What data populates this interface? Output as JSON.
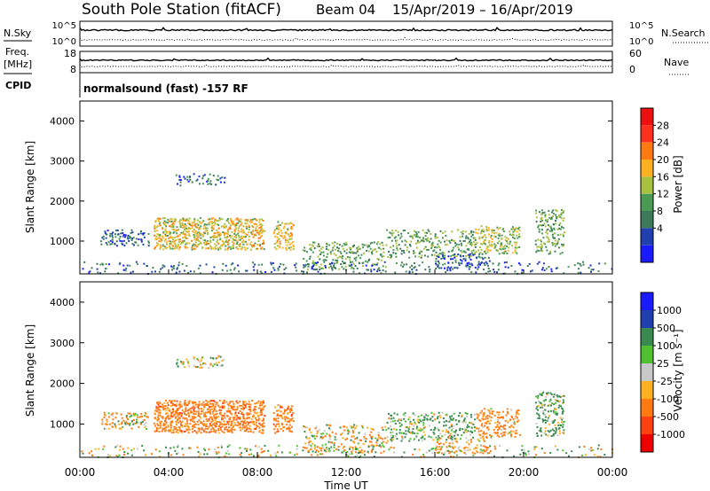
{
  "header": {
    "station": "South Pole Station (fitACF)",
    "beam": "Beam 04",
    "dates": "15/Apr/2019 – 16/Apr/2019"
  },
  "strip1": {
    "left_label": "N.Sky",
    "right_label": "N.Search",
    "left_ticks": [
      "10^5",
      "10^0"
    ],
    "right_ticks": [
      "10^5",
      "10^0"
    ]
  },
  "strip2": {
    "left_label_1": "Freq.",
    "left_label_2": "[MHz]",
    "right_label": "Nave",
    "left_ticks": [
      "18",
      "8"
    ],
    "right_ticks": [
      "60",
      "0"
    ]
  },
  "cpid": {
    "label": "CPID",
    "text": "normalsound (fast) -157 RF"
  },
  "power_panel": {
    "ylabel": "Slant Range [km]",
    "cbar_label": "Power [dB]",
    "cbar_ticks": [
      "28",
      "24",
      "20",
      "16",
      "12",
      "8",
      "4"
    ]
  },
  "velocity_panel": {
    "ylabel": "Slant Range [km]",
    "cbar_label": "Velocity [m s⁻¹]",
    "cbar_ticks": [
      "1000",
      "500",
      "100",
      "25",
      "-25",
      "-100",
      "-500",
      "-1000"
    ]
  },
  "xaxis": {
    "label": "Time UT",
    "ticks": [
      "00:00",
      "04:00",
      "08:00",
      "12:00",
      "16:00",
      "20:00",
      "00:00"
    ]
  },
  "chart_data": [
    {
      "type": "heatmap",
      "name": "power",
      "xlim_hours": [
        0,
        24
      ],
      "ylim_km": [
        180,
        4500
      ],
      "yticks": [
        1000,
        2000,
        3000,
        4000
      ],
      "colorbar_levels_dB": [
        4,
        8,
        12,
        16,
        20,
        24,
        28
      ],
      "colors": [
        "#1a1aff",
        "#2040b0",
        "#3c7a5a",
        "#4a9a55",
        "#a8c040",
        "#ffb020",
        "#ff7a10",
        "#ff3020",
        "#ee1010"
      ],
      "blobs": [
        {
          "t": [
            3.3,
            8.3
          ],
          "r": [
            800,
            1600
          ],
          "level": 20,
          "density": 0.7
        },
        {
          "t": [
            8.7,
            9.6
          ],
          "r": [
            800,
            1500
          ],
          "level": 20,
          "density": 0.6
        },
        {
          "t": [
            0.9,
            3.1
          ],
          "r": [
            900,
            1300
          ],
          "level": 8,
          "density": 0.4
        },
        {
          "t": [
            4.3,
            6.5
          ],
          "r": [
            2400,
            2700
          ],
          "level": 8,
          "density": 0.3
        },
        {
          "t": [
            10.0,
            13.8
          ],
          "r": [
            300,
            1000
          ],
          "level": 14,
          "density": 0.35
        },
        {
          "t": [
            13.8,
            17.8
          ],
          "r": [
            600,
            1300
          ],
          "level": 14,
          "density": 0.35
        },
        {
          "t": [
            17.8,
            19.8
          ],
          "r": [
            700,
            1400
          ],
          "level": 18,
          "density": 0.45
        },
        {
          "t": [
            16.0,
            18.5
          ],
          "r": [
            300,
            700
          ],
          "level": 8,
          "density": 0.35
        },
        {
          "t": [
            20.5,
            21.8
          ],
          "r": [
            700,
            1800
          ],
          "level": 14,
          "density": 0.45
        },
        {
          "t": [
            0.0,
            24.0
          ],
          "r": [
            200,
            500
          ],
          "level": 8,
          "density": 0.15
        }
      ]
    },
    {
      "type": "heatmap",
      "name": "velocity",
      "xlim_hours": [
        0,
        24
      ],
      "ylim_km": [
        180,
        4500
      ],
      "yticks": [
        1000,
        2000,
        3000,
        4000
      ],
      "colorbar_levels_ms": [
        -1000,
        -500,
        -100,
        -25,
        25,
        100,
        500,
        1000
      ],
      "colors": [
        "#ee0000",
        "#ff4010",
        "#ff7a10",
        "#ffb020",
        "#c8c8c8",
        "#50c030",
        "#3a8a50",
        "#2040b0",
        "#1a1aff"
      ],
      "blobs": [
        {
          "t": [
            3.3,
            8.3
          ],
          "r": [
            800,
            1600
          ],
          "level": -300,
          "density": 0.75
        },
        {
          "t": [
            8.7,
            9.6
          ],
          "r": [
            800,
            1500
          ],
          "level": -300,
          "density": 0.6
        },
        {
          "t": [
            0.9,
            3.1
          ],
          "r": [
            900,
            1300
          ],
          "level": -80,
          "density": 0.4
        },
        {
          "t": [
            4.3,
            6.5
          ],
          "r": [
            2400,
            2700
          ],
          "level": 50,
          "density": 0.3
        },
        {
          "t": [
            10.0,
            13.8
          ],
          "r": [
            300,
            1000
          ],
          "level": -60,
          "density": 0.35
        },
        {
          "t": [
            13.8,
            17.8
          ],
          "r": [
            600,
            1300
          ],
          "level": 120,
          "density": 0.35
        },
        {
          "t": [
            17.8,
            19.8
          ],
          "r": [
            700,
            1400
          ],
          "level": -200,
          "density": 0.45
        },
        {
          "t": [
            16.0,
            18.5
          ],
          "r": [
            300,
            700
          ],
          "level": -150,
          "density": 0.35
        },
        {
          "t": [
            20.5,
            21.8
          ],
          "r": [
            700,
            1800
          ],
          "level": 150,
          "density": 0.45
        },
        {
          "t": [
            0.0,
            24.0
          ],
          "r": [
            200,
            500
          ],
          "level": 0,
          "density": 0.15
        }
      ]
    }
  ]
}
